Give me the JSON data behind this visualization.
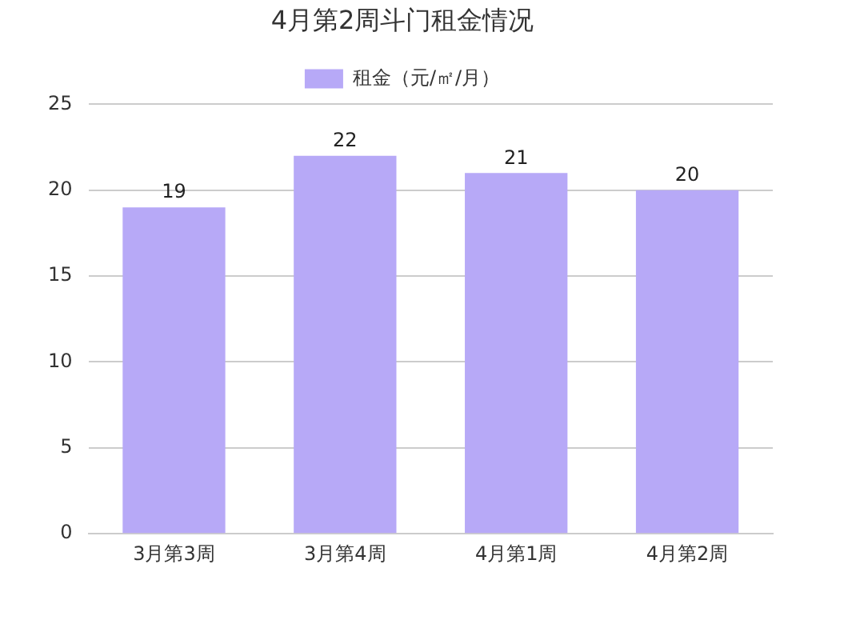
{
  "chart_data": {
    "type": "bar",
    "title": "4月第2周斗门租金情况",
    "categories": [
      "3月第3周",
      "3月第4周",
      "4月第1周",
      "4月第2周"
    ],
    "series": [
      {
        "name": "租金（元/㎡/月）",
        "color": "#b7a9f7",
        "values": [
          19,
          22,
          21,
          20
        ]
      }
    ],
    "ylim": [
      0,
      25
    ],
    "yticks": [
      0,
      5,
      10,
      15,
      20,
      25
    ],
    "grid": "y",
    "legend": "top",
    "data_labels": true
  }
}
